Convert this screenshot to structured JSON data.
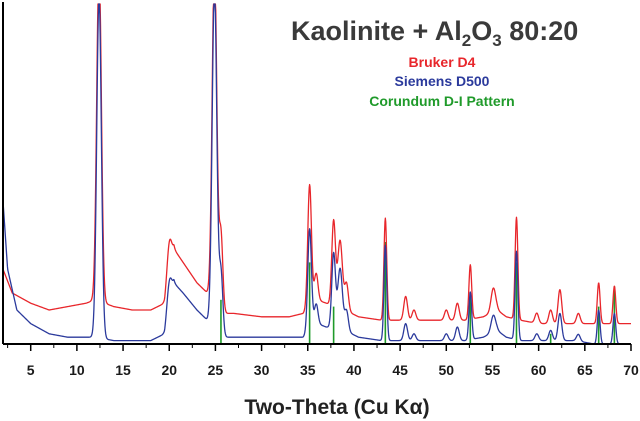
{
  "chart_data": {
    "type": "line",
    "title_main": "Kaolinite + Al",
    "title_sub1": "2",
    "title_mid": "O",
    "title_sub2": "3",
    "title_ratio": "80:20",
    "xlabel": "Two-Theta (Cu Kα)",
    "ylabel": "",
    "xlim": [
      2,
      70
    ],
    "ylim": [
      0,
      100
    ],
    "x_ticks": [
      "5",
      "10",
      "15",
      "20",
      "25",
      "30",
      "35",
      "40",
      "45",
      "50",
      "55",
      "60",
      "65",
      "70"
    ],
    "legend": [
      {
        "label": "Bruker D4",
        "color": "#e8262b"
      },
      {
        "label": "Siemens D500",
        "color": "#2b3a9c"
      },
      {
        "label": "Corundum D-I Pattern",
        "color": "#1f9a2a"
      }
    ],
    "series": [
      {
        "name": "Bruker D4",
        "color": "#e8262b",
        "baseline": [
          [
            2,
            22
          ],
          [
            3,
            15
          ],
          [
            5,
            12
          ],
          [
            7,
            10
          ],
          [
            9,
            11
          ],
          [
            11,
            12
          ],
          [
            12,
            13
          ],
          [
            14,
            11
          ],
          [
            16,
            10
          ],
          [
            18,
            10
          ],
          [
            19.5,
            12
          ],
          [
            20.5,
            28
          ],
          [
            21.5,
            24
          ],
          [
            23,
            18
          ],
          [
            24.5,
            14
          ],
          [
            26,
            9
          ],
          [
            27,
            9
          ],
          [
            30,
            8
          ],
          [
            33,
            8
          ],
          [
            34.5,
            9
          ],
          [
            36,
            13
          ],
          [
            37,
            12
          ],
          [
            39,
            10
          ],
          [
            40.5,
            8
          ],
          [
            43,
            7
          ],
          [
            45,
            7
          ],
          [
            47,
            7
          ],
          [
            49,
            7
          ],
          [
            52,
            7
          ],
          [
            54,
            8
          ],
          [
            55.5,
            10
          ],
          [
            56.5,
            8
          ],
          [
            58,
            7
          ],
          [
            60,
            6
          ],
          [
            62,
            6
          ],
          [
            64,
            6
          ],
          [
            66,
            6
          ],
          [
            68,
            6
          ],
          [
            70,
            6
          ]
        ],
        "peaks": [
          [
            12.4,
            100,
            0.25
          ],
          [
            20.0,
            10,
            0.25
          ],
          [
            24.9,
            100,
            0.25
          ],
          [
            25.6,
            22,
            0.2
          ],
          [
            35.2,
            36,
            0.2
          ],
          [
            35.9,
            8,
            0.2
          ],
          [
            37.8,
            25,
            0.2
          ],
          [
            38.5,
            20,
            0.25
          ],
          [
            39.2,
            8,
            0.2
          ],
          [
            43.4,
            30,
            0.15
          ],
          [
            45.6,
            7,
            0.2
          ],
          [
            46.5,
            3,
            0.2
          ],
          [
            50.0,
            3,
            0.2
          ],
          [
            51.2,
            5,
            0.2
          ],
          [
            52.6,
            16,
            0.15
          ],
          [
            55.1,
            7,
            0.25
          ],
          [
            57.6,
            30,
            0.15
          ],
          [
            59.8,
            3,
            0.2
          ],
          [
            61.3,
            4,
            0.2
          ],
          [
            62.3,
            10,
            0.2
          ],
          [
            64.3,
            3,
            0.2
          ],
          [
            66.5,
            12,
            0.15
          ],
          [
            68.2,
            11,
            0.15
          ]
        ]
      },
      {
        "name": "Siemens D500",
        "color": "#2b3a9c",
        "baseline": [
          [
            2,
            42
          ],
          [
            2.5,
            22
          ],
          [
            3.5,
            10
          ],
          [
            5,
            6
          ],
          [
            7,
            3
          ],
          [
            9,
            2
          ],
          [
            11,
            2
          ],
          [
            12,
            2
          ],
          [
            14,
            1
          ],
          [
            16,
            1
          ],
          [
            18,
            1
          ],
          [
            19.5,
            3
          ],
          [
            20.5,
            18
          ],
          [
            21.5,
            15
          ],
          [
            23,
            10
          ],
          [
            24.5,
            6
          ],
          [
            26,
            2
          ],
          [
            27,
            2
          ],
          [
            30,
            2
          ],
          [
            33,
            2
          ],
          [
            34.5,
            2
          ],
          [
            36,
            6
          ],
          [
            37,
            5
          ],
          [
            39,
            4
          ],
          [
            40.5,
            2
          ],
          [
            43,
            1
          ],
          [
            45,
            1
          ],
          [
            47,
            1
          ],
          [
            49,
            1
          ],
          [
            52,
            1
          ],
          [
            54,
            2
          ],
          [
            55.5,
            4
          ],
          [
            56.5,
            2
          ],
          [
            58,
            1
          ],
          [
            60,
            1
          ],
          [
            62,
            1
          ],
          [
            64,
            1
          ],
          [
            66,
            0
          ],
          [
            68,
            0
          ],
          [
            70,
            0
          ]
        ],
        "peaks": [
          [
            12.4,
            100,
            0.25
          ],
          [
            20.0,
            8,
            0.25
          ],
          [
            24.9,
            100,
            0.25
          ],
          [
            25.6,
            18,
            0.2
          ],
          [
            35.2,
            30,
            0.2
          ],
          [
            35.9,
            6,
            0.2
          ],
          [
            37.8,
            22,
            0.2
          ],
          [
            38.5,
            18,
            0.25
          ],
          [
            39.2,
            6,
            0.2
          ],
          [
            43.4,
            28,
            0.15
          ],
          [
            45.6,
            5,
            0.2
          ],
          [
            46.5,
            2,
            0.2
          ],
          [
            50.0,
            2,
            0.2
          ],
          [
            51.2,
            4,
            0.2
          ],
          [
            52.6,
            14,
            0.15
          ],
          [
            55.1,
            5,
            0.25
          ],
          [
            57.6,
            26,
            0.15
          ],
          [
            59.8,
            2,
            0.2
          ],
          [
            61.3,
            3,
            0.2
          ],
          [
            62.3,
            8,
            0.2
          ],
          [
            64.3,
            2,
            0.2
          ],
          [
            66.5,
            10,
            0.15
          ],
          [
            68.2,
            9,
            0.15
          ]
        ]
      }
    ],
    "reference_lines": [
      {
        "x": 25.6,
        "height": 13
      },
      {
        "x": 35.2,
        "height": 24
      },
      {
        "x": 37.8,
        "height": 11
      },
      {
        "x": 43.4,
        "height": 30
      },
      {
        "x": 52.6,
        "height": 14
      },
      {
        "x": 57.6,
        "height": 24
      },
      {
        "x": 61.3,
        "height": 3
      },
      {
        "x": 66.5,
        "height": 11
      },
      {
        "x": 68.2,
        "height": 17
      }
    ]
  }
}
